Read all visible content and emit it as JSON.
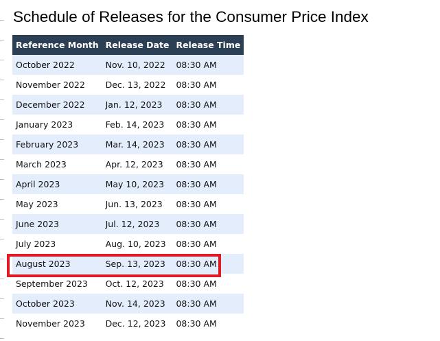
{
  "title": "Schedule of Releases for the Consumer Price Index",
  "table": {
    "headers": [
      "Reference Month",
      "Release Date",
      "Release Time"
    ],
    "rows": [
      [
        "October 2022",
        "Nov. 10, 2022",
        "08:30 AM"
      ],
      [
        "November 2022",
        "Dec. 13, 2022",
        "08:30 AM"
      ],
      [
        "December 2022",
        "Jan. 12, 2023",
        "08:30 AM"
      ],
      [
        "January 2023",
        "Feb. 14, 2023",
        "08:30 AM"
      ],
      [
        "February 2023",
        "Mar. 14, 2023",
        "08:30 AM"
      ],
      [
        "March 2023",
        "Apr. 12, 2023",
        "08:30 AM"
      ],
      [
        "April 2023",
        "May 10, 2023",
        "08:30 AM"
      ],
      [
        "May 2023",
        "Jun. 13, 2023",
        "08:30 AM"
      ],
      [
        "June 2023",
        "Jul. 12, 2023",
        "08:30 AM"
      ],
      [
        "July 2023",
        "Aug. 10, 2023",
        "08:30 AM"
      ],
      [
        "August 2023",
        "Sep. 13, 2023",
        "08:30 AM"
      ],
      [
        "September 2023",
        "Oct. 12, 2023",
        "08:30 AM"
      ],
      [
        "October 2023",
        "Nov. 14, 2023",
        "08:30 AM"
      ],
      [
        "November 2023",
        "Dec. 12, 2023",
        "08:30 AM"
      ]
    ],
    "highlighted_row": "August 2023"
  },
  "colors": {
    "header_bg": "#2c4055",
    "stripe_bg": "#e3edfc",
    "highlight": "#e01a22"
  }
}
